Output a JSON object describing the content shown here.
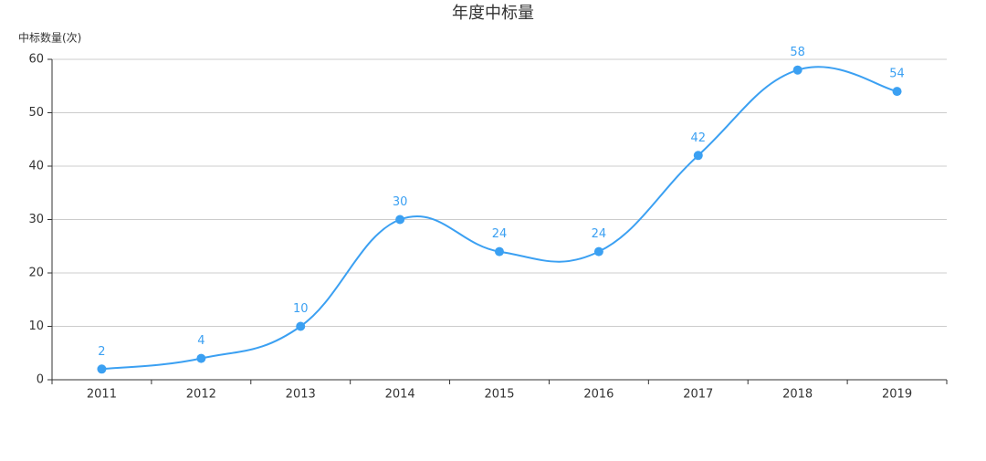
{
  "chart_data": {
    "type": "line",
    "title": "年度中标量",
    "y_label": "中标数量(次)",
    "categories": [
      "2011",
      "2012",
      "2013",
      "2014",
      "2015",
      "2016",
      "2017",
      "2018",
      "2019"
    ],
    "series": [
      {
        "name": "中标数量",
        "color": "#3ba0f2",
        "values": [
          2,
          4,
          10,
          30,
          24,
          24,
          42,
          58,
          54
        ]
      }
    ],
    "ylim": [
      0,
      60
    ],
    "yticks": [
      0,
      10,
      20,
      30,
      40,
      50,
      60
    ],
    "grid": true,
    "smooth": true
  }
}
